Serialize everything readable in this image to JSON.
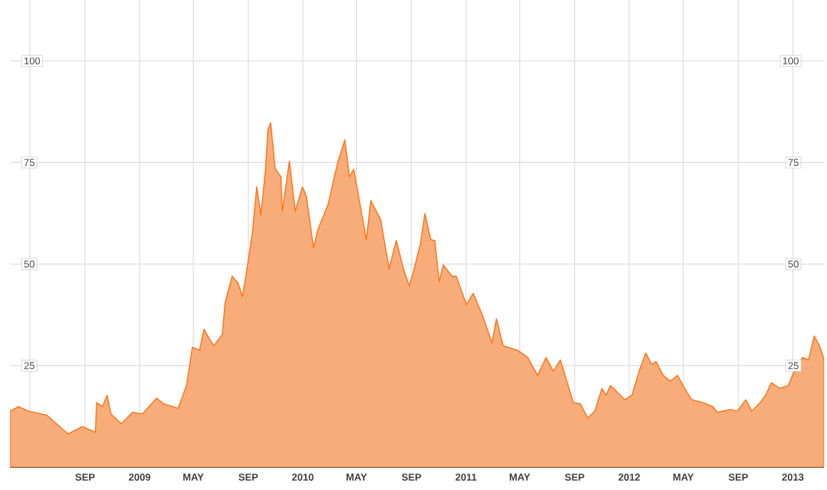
{
  "chart_data": {
    "type": "area",
    "color": "#f8ac7a",
    "x": [
      "2008-03-17",
      "2008-04-05",
      "2008-04-27",
      "2008-06-08",
      "2008-07-10",
      "2008-07-25",
      "2008-08-26",
      "2008-09-24",
      "2008-09-27",
      "2008-10-10",
      "2008-10-20",
      "2008-10-29",
      "2008-11-21",
      "2008-12-16",
      "2009-01-07",
      "2009-02-08",
      "2009-02-24",
      "2009-03-28",
      "2009-04-16",
      "2009-04-29",
      "2009-05-15",
      "2009-05-25",
      "2009-06-06",
      "2009-06-16",
      "2009-07-05",
      "2009-07-11",
      "2009-07-27",
      "2009-08-09",
      "2009-08-19",
      "2009-08-28",
      "2009-09-10",
      "2009-09-20",
      "2009-09-29",
      "2009-10-09",
      "2009-10-15",
      "2009-10-21",
      "2009-10-31",
      "2009-11-13",
      "2009-11-16",
      "2009-12-02",
      "2009-12-15",
      "2009-12-31",
      "2010-01-09",
      "2010-01-25",
      "2010-02-04",
      "2010-02-26",
      "2010-03-20",
      "2010-04-05",
      "2010-04-15",
      "2010-04-25",
      "2010-05-23",
      "2010-06-02",
      "2010-06-24",
      "2010-07-13",
      "2010-07-29",
      "2010-08-14",
      "2010-08-27",
      "2010-09-05",
      "2010-09-21",
      "2010-10-01",
      "2010-10-14",
      "2010-10-23",
      "2010-11-02",
      "2010-11-11",
      "2010-12-01",
      "2010-12-10",
      "2011-01-02",
      "2011-01-17",
      "2011-02-06",
      "2011-02-28",
      "2011-03-10",
      "2011-03-25",
      "2011-04-26",
      "2011-05-19",
      "2011-06-10",
      "2011-06-29",
      "2011-07-15",
      "2011-07-31",
      "2011-08-29",
      "2011-09-14",
      "2011-09-30",
      "2011-10-16",
      "2011-11-01",
      "2011-11-10",
      "2011-11-20",
      "2011-12-06",
      "2011-12-22",
      "2012-01-07",
      "2012-01-23",
      "2012-02-07",
      "2012-02-20",
      "2012-03-01",
      "2012-03-17",
      "2012-04-02",
      "2012-04-18",
      "2012-05-04",
      "2012-05-20",
      "2012-06-14",
      "2012-07-06",
      "2012-07-16",
      "2012-08-14",
      "2012-08-30",
      "2012-09-18",
      "2012-10-01",
      "2012-10-20",
      "2012-11-01",
      "2012-11-14",
      "2012-12-03",
      "2012-12-22",
      "2013-01-04",
      "2013-01-23",
      "2013-02-05",
      "2013-02-18",
      "2013-03-03",
      "2013-03-12"
    ],
    "values": [
      13.8,
      14.9,
      13.8,
      12.8,
      9.6,
      8.2,
      10,
      8.6,
      15.9,
      14.9,
      17.7,
      13.1,
      10.7,
      13.5,
      13.1,
      17,
      15.6,
      14.5,
      20.1,
      29.5,
      28.8,
      34,
      31.6,
      29.9,
      32.7,
      40.4,
      47,
      45.3,
      42,
      48,
      57.5,
      69,
      62,
      72.6,
      83,
      84.8,
      73.6,
      71.5,
      63,
      75.3,
      63,
      69,
      66.6,
      54,
      58.6,
      64.5,
      75,
      80.6,
      71.5,
      73.3,
      56,
      65.6,
      61,
      48.8,
      55.8,
      48.8,
      44.6,
      48,
      55,
      62.4,
      56,
      55.8,
      45.6,
      49.8,
      47,
      47,
      40,
      42.8,
      37.6,
      30.6,
      36.5,
      29.9,
      28.8,
      27,
      22.6,
      27,
      23.6,
      26.4,
      15.9,
      15.6,
      12.1,
      13.8,
      19.4,
      17.7,
      20.1,
      18.4,
      16.6,
      17.7,
      23.6,
      28.1,
      25.3,
      26,
      22.6,
      21.2,
      22.6,
      19.4,
      16.6,
      15.9,
      14.9,
      13.5,
      14.2,
      13.8,
      16.6,
      13.8,
      15.9,
      17.7,
      20.8,
      19.4,
      20.1,
      23.6,
      27,
      26.4,
      32.3,
      29.5,
      26.4
    ],
    "xlim": [
      "2008-03-17",
      "2013-03-12"
    ],
    "xticks": [
      {
        "value": "2008-05",
        "label": null
      },
      {
        "value": "2008-09",
        "label": "SEP"
      },
      {
        "value": "2009-01",
        "label": "2009"
      },
      {
        "value": "2009-05",
        "label": "MAY"
      },
      {
        "value": "2009-09",
        "label": "SEP"
      },
      {
        "value": "2010-01",
        "label": "2010"
      },
      {
        "value": "2010-05",
        "label": "MAY"
      },
      {
        "value": "2010-09",
        "label": "SEP"
      },
      {
        "value": "2011-01",
        "label": "2011"
      },
      {
        "value": "2011-05",
        "label": "MAY"
      },
      {
        "value": "2011-09",
        "label": "SEP"
      },
      {
        "value": "2012-01",
        "label": "2012"
      },
      {
        "value": "2012-05",
        "label": "MAY"
      },
      {
        "value": "2012-09",
        "label": "SEP"
      },
      {
        "value": "2013-01",
        "label": "2013"
      }
    ],
    "ylim": [
      0,
      115
    ],
    "yticks": [
      25,
      50,
      75,
      100
    ],
    "y2lim": [
      0,
      115
    ],
    "y2ticks": [
      25,
      50,
      75,
      100
    ],
    "grid": true
  }
}
